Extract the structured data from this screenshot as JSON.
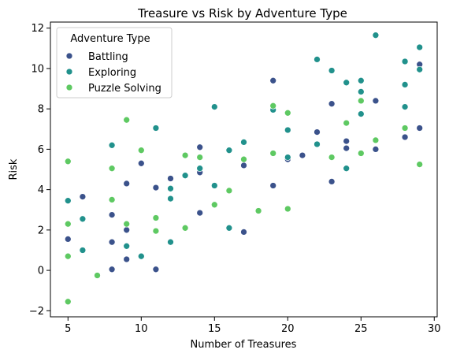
{
  "chart_data": {
    "type": "scatter",
    "title": "Treasure vs Risk by Adventure Type",
    "xlabel": "Number of Treasures",
    "ylabel": "Risk",
    "xlim": [
      3.8,
      30.2
    ],
    "ylim": [
      -2.3,
      12.3
    ],
    "xticks": [
      5,
      10,
      15,
      20,
      25,
      30
    ],
    "yticks": [
      -2,
      0,
      2,
      4,
      6,
      8,
      10,
      12
    ],
    "grid": false,
    "legend": {
      "title": "Adventure Type",
      "placement": "top-left"
    },
    "series": [
      {
        "name": "Battling",
        "color": "#3b528b",
        "points": [
          [
            5,
            1.55
          ],
          [
            6,
            3.65
          ],
          [
            8,
            2.75
          ],
          [
            8,
            1.4
          ],
          [
            8,
            0.05
          ],
          [
            9,
            4.3
          ],
          [
            9,
            2.0
          ],
          [
            9,
            0.55
          ],
          [
            10,
            5.3
          ],
          [
            11,
            4.1
          ],
          [
            11,
            0.05
          ],
          [
            12,
            4.55
          ],
          [
            14,
            6.1
          ],
          [
            14,
            4.85
          ],
          [
            14,
            2.85
          ],
          [
            17,
            5.2
          ],
          [
            17,
            1.9
          ],
          [
            19,
            9.4
          ],
          [
            19,
            4.2
          ],
          [
            20,
            5.5
          ],
          [
            21,
            5.7
          ],
          [
            22,
            6.85
          ],
          [
            23,
            8.25
          ],
          [
            23,
            4.4
          ],
          [
            24,
            6.4
          ],
          [
            24,
            6.05
          ],
          [
            26,
            8.4
          ],
          [
            26,
            6.0
          ],
          [
            28,
            6.6
          ],
          [
            29,
            10.2
          ],
          [
            29,
            7.05
          ]
        ]
      },
      {
        "name": "Exploring",
        "color": "#21918c",
        "points": [
          [
            5,
            3.45
          ],
          [
            6,
            2.55
          ],
          [
            6,
            1.0
          ],
          [
            8,
            6.2
          ],
          [
            9,
            1.2
          ],
          [
            10,
            0.7
          ],
          [
            11,
            7.05
          ],
          [
            12,
            4.05
          ],
          [
            12,
            3.55
          ],
          [
            12,
            1.4
          ],
          [
            13,
            4.7
          ],
          [
            14,
            5.05
          ],
          [
            15,
            8.1
          ],
          [
            15,
            4.2
          ],
          [
            16,
            5.95
          ],
          [
            16,
            2.1
          ],
          [
            17,
            6.35
          ],
          [
            19,
            7.95
          ],
          [
            20,
            6.95
          ],
          [
            20,
            5.6
          ],
          [
            22,
            10.45
          ],
          [
            22,
            6.25
          ],
          [
            23,
            9.9
          ],
          [
            24,
            9.3
          ],
          [
            24,
            5.05
          ],
          [
            25,
            9.4
          ],
          [
            25,
            8.85
          ],
          [
            25,
            7.75
          ],
          [
            26,
            11.65
          ],
          [
            28,
            10.35
          ],
          [
            28,
            9.2
          ],
          [
            28,
            8.1
          ],
          [
            29,
            11.05
          ],
          [
            29,
            9.95
          ]
        ]
      },
      {
        "name": "Puzzle Solving",
        "color": "#5ec962",
        "points": [
          [
            5,
            5.4
          ],
          [
            5,
            2.3
          ],
          [
            5,
            0.7
          ],
          [
            5,
            -1.55
          ],
          [
            7,
            -0.25
          ],
          [
            8,
            5.05
          ],
          [
            8,
            3.5
          ],
          [
            9,
            7.45
          ],
          [
            9,
            2.3
          ],
          [
            10,
            5.95
          ],
          [
            11,
            2.6
          ],
          [
            11,
            1.95
          ],
          [
            13,
            5.7
          ],
          [
            13,
            2.1
          ],
          [
            14,
            5.6
          ],
          [
            15,
            3.25
          ],
          [
            16,
            3.95
          ],
          [
            17,
            5.5
          ],
          [
            18,
            2.95
          ],
          [
            19,
            8.15
          ],
          [
            19,
            5.8
          ],
          [
            20,
            7.8
          ],
          [
            20,
            3.05
          ],
          [
            23,
            5.6
          ],
          [
            24,
            7.3
          ],
          [
            25,
            8.4
          ],
          [
            25,
            5.8
          ],
          [
            26,
            6.45
          ],
          [
            28,
            7.05
          ],
          [
            29,
            5.25
          ]
        ]
      }
    ]
  }
}
